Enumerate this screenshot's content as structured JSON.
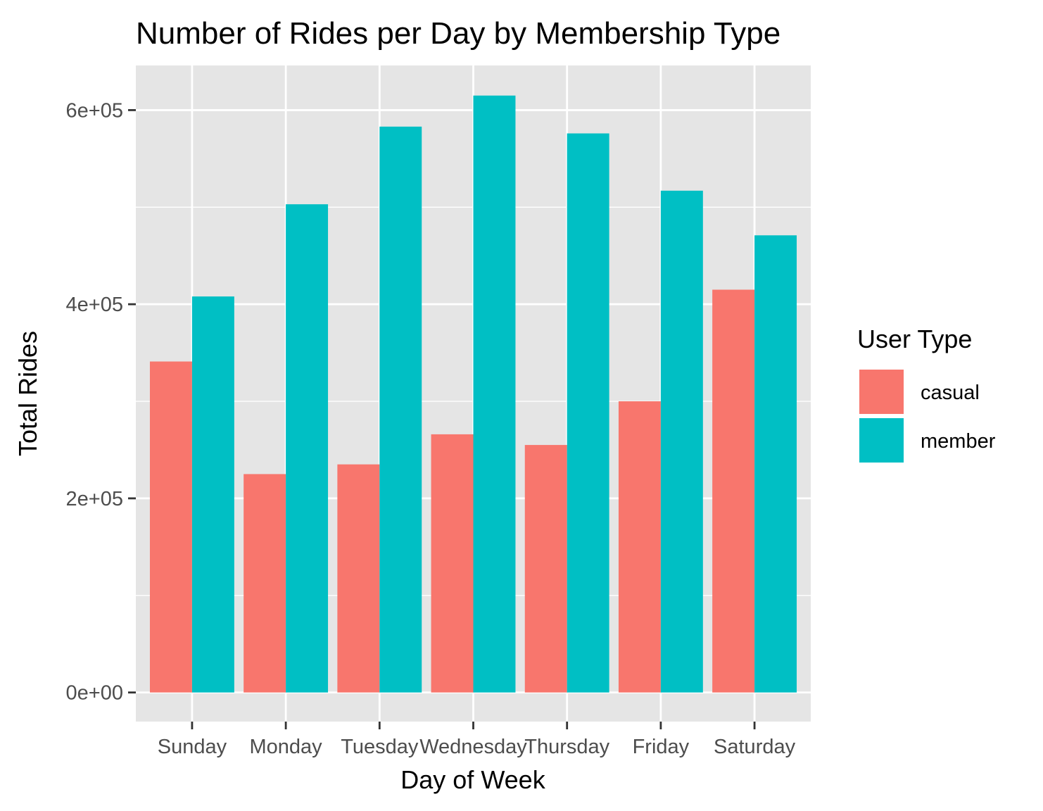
{
  "chart_data": {
    "type": "bar",
    "title": "Number of Rides per Day by Membership Type",
    "xlabel": "Day of Week",
    "ylabel": "Total Rides",
    "categories": [
      "Sunday",
      "Monday",
      "Tuesday",
      "Wednesday",
      "Thursday",
      "Friday",
      "Saturday"
    ],
    "series": [
      {
        "name": "casual",
        "color": "#F8766D",
        "values": [
          341000,
          225000,
          235000,
          266000,
          255000,
          300000,
          415000
        ]
      },
      {
        "name": "member",
        "color": "#00BFC4",
        "values": [
          408000,
          503000,
          583000,
          615000,
          576000,
          517000,
          471000
        ]
      }
    ],
    "ylim": [
      -30000,
      646000
    ],
    "yticks": [
      0,
      200000,
      400000,
      600000
    ],
    "ytick_labels": [
      "0e+00",
      "2e+05",
      "4e+05",
      "6e+05"
    ],
    "grid": true,
    "legend": {
      "title": "User Type",
      "position": "right"
    },
    "panel_background": "#E5E5E5"
  }
}
